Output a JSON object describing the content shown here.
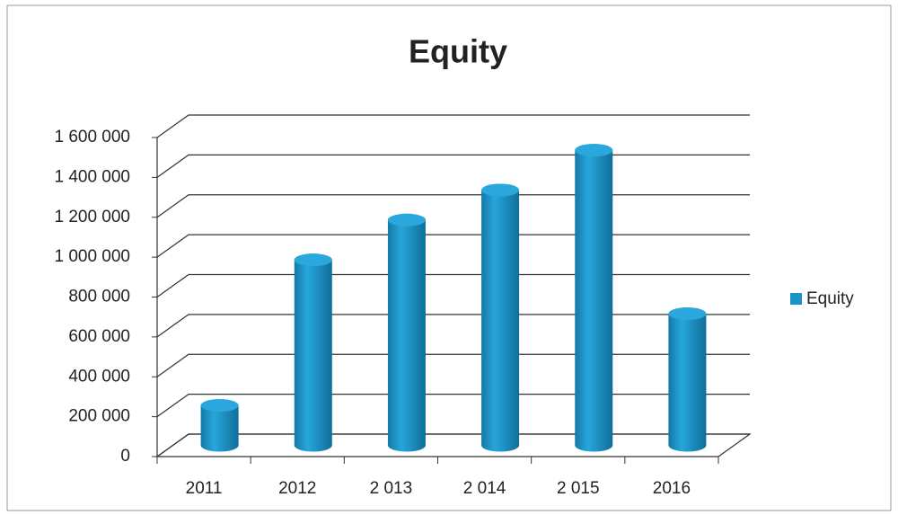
{
  "chart_data": {
    "type": "bar",
    "title": "Equity",
    "categories": [
      "2011",
      "2012",
      "2 013",
      "2 014",
      "2 015",
      "2016"
    ],
    "series": [
      {
        "name": "Equity",
        "color": "#1a93c6",
        "values": [
          200000,
          930000,
          1130000,
          1280000,
          1480000,
          660000
        ]
      }
    ],
    "ylim": [
      0,
      1600000
    ],
    "yticks": [
      0,
      {
        "value": 200000,
        "label": "200 000"
      },
      {
        "value": 400000,
        "label": "400 000"
      },
      {
        "value": 600000,
        "label": "600 000"
      },
      {
        "value": 800000,
        "label": "800 000"
      },
      {
        "value": 1000000,
        "label": "1 000 000"
      },
      {
        "value": 1200000,
        "label": "1 200 000"
      },
      {
        "value": 1400000,
        "label": "1 400 000"
      },
      {
        "value": 1600000,
        "label": "1 600 000"
      }
    ],
    "grid": true,
    "legend": "right"
  }
}
